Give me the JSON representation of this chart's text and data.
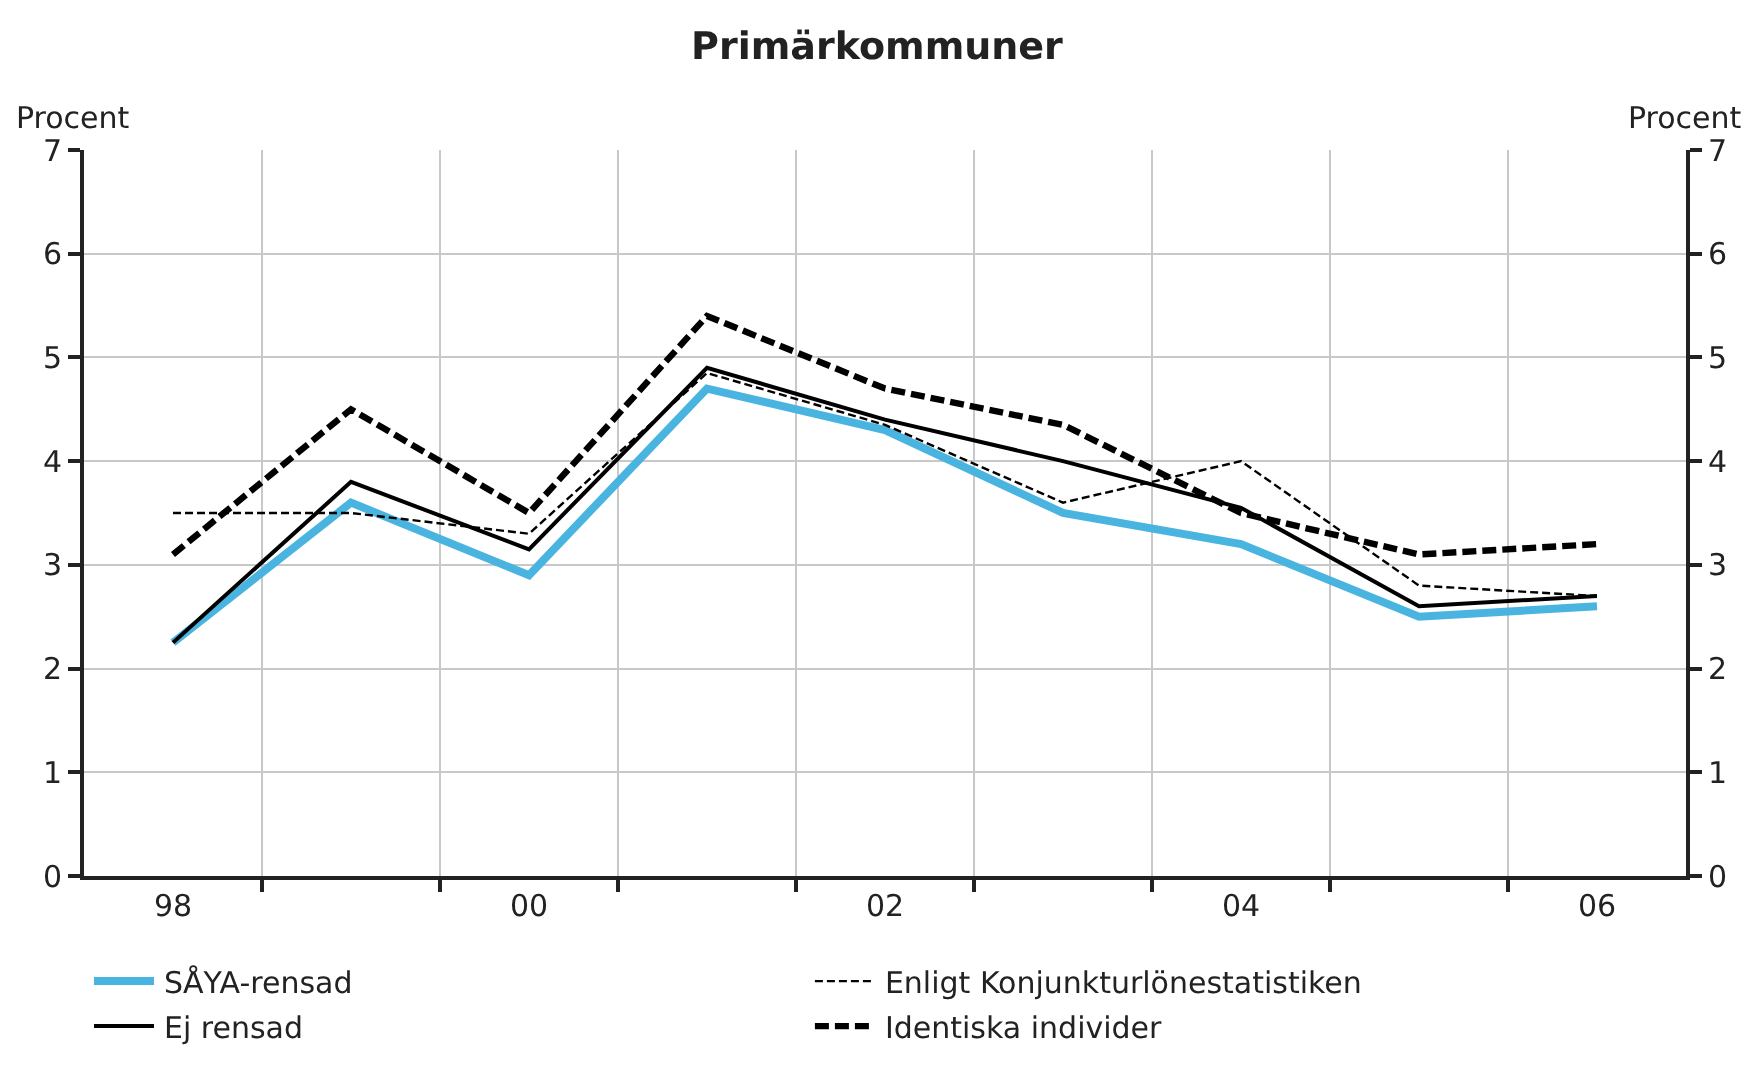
{
  "chart_data": {
    "type": "line",
    "title": "Primärkommuner",
    "ylabel": "Procent",
    "y2label": "Procent",
    "x": [
      1998,
      1999,
      2000,
      2001,
      2002,
      2003,
      2004,
      2005,
      2006
    ],
    "xlim": [
      1997.5,
      2006.5
    ],
    "xticks": [
      {
        "value": 1998,
        "label": "98"
      },
      {
        "value": 2000,
        "label": "00"
      },
      {
        "value": 2002,
        "label": "02"
      },
      {
        "value": 2004,
        "label": "04"
      },
      {
        "value": 2006,
        "label": "06"
      },
      {
        "value": 1998.5,
        "label": null
      },
      {
        "value": 1999.5,
        "label": null
      },
      {
        "value": 2000.5,
        "label": null
      },
      {
        "value": 2001.5,
        "label": null
      },
      {
        "value": 2002.5,
        "label": null
      },
      {
        "value": 2003.5,
        "label": null
      },
      {
        "value": 2004.5,
        "label": null
      },
      {
        "value": 2005.5,
        "label": null
      }
    ],
    "ylim": [
      0,
      7
    ],
    "yticks": [
      0,
      1,
      2,
      3,
      4,
      5,
      6,
      7
    ],
    "y2lim": [
      0,
      7
    ],
    "y2ticks": [
      0,
      1,
      2,
      3,
      4,
      5,
      6,
      7
    ],
    "grid": true,
    "legend": "bottom",
    "marker": "none",
    "series": [
      {
        "name": "SÅYA-rensad",
        "color": "#4ab4e0",
        "line_style": "solid",
        "values": [
          2.25,
          3.6,
          2.9,
          4.7,
          4.3,
          3.5,
          3.2,
          2.5,
          2.6
        ]
      },
      {
        "name": "Enligt Konjunkturlönestatistiken",
        "color": "#000000",
        "line_style": "dotted",
        "values": [
          3.5,
          3.5,
          3.3,
          4.85,
          4.35,
          3.6,
          4.0,
          2.8,
          2.7
        ]
      },
      {
        "name": "Ej rensad",
        "color": "#000000",
        "line_style": "solid",
        "values": [
          2.25,
          3.8,
          3.15,
          4.9,
          4.4,
          4.0,
          3.55,
          2.6,
          2.7
        ]
      },
      {
        "name": "Identiska individer",
        "color": "#000000",
        "line_style": "dashed",
        "values": [
          3.1,
          4.5,
          3.5,
          5.4,
          4.7,
          4.35,
          3.5,
          3.1,
          3.2
        ]
      }
    ]
  }
}
